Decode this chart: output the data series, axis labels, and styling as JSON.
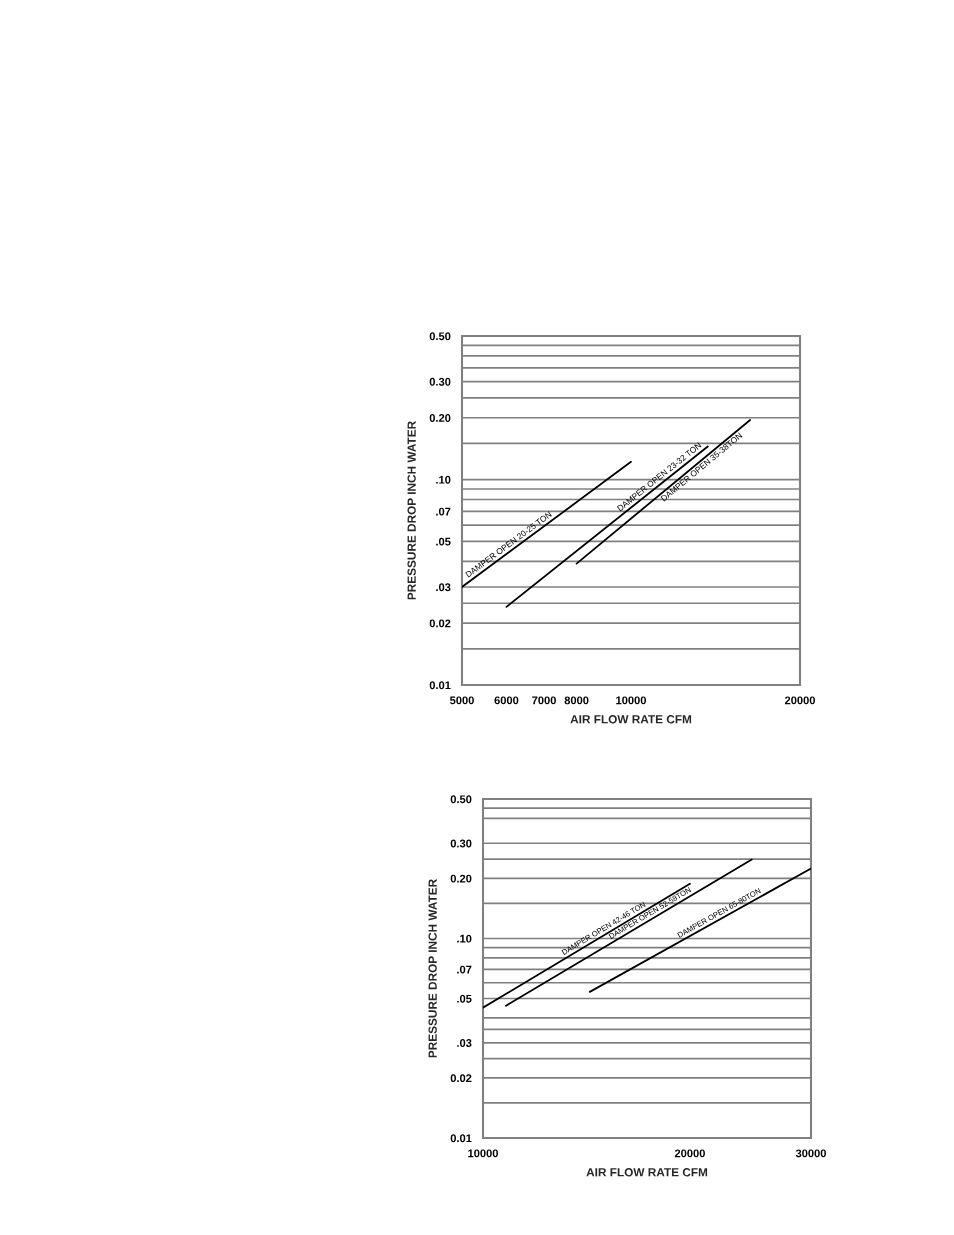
{
  "chart_data": [
    {
      "type": "line",
      "xlabel": "AIR FLOW RATE CFM",
      "ylabel": "PRESSURE DROP INCH WATER",
      "log": "xy",
      "grid": "y",
      "legend": false,
      "marker": "none",
      "line_style": "solid",
      "xlim": [
        5000,
        20000
      ],
      "xticks": [
        5000,
        6000,
        7000,
        8000,
        10000,
        20000
      ],
      "ylim": [
        0.01,
        0.5
      ],
      "yticks": [
        {
          "value": 0.01,
          "label": "0.01"
        },
        {
          "value": 0.015,
          "label": null
        },
        {
          "value": 0.02,
          "label": "0.02"
        },
        {
          "value": 0.025,
          "label": null
        },
        {
          "value": 0.03,
          "label": ".03"
        },
        {
          "value": 0.04,
          "label": null
        },
        {
          "value": 0.05,
          "label": ".05"
        },
        {
          "value": 0.06,
          "label": null
        },
        {
          "value": 0.07,
          "label": ".07"
        },
        {
          "value": 0.08,
          "label": null
        },
        {
          "value": 0.09,
          "label": null
        },
        {
          "value": 0.1,
          "label": ".10"
        },
        {
          "value": 0.15,
          "label": null
        },
        {
          "value": 0.2,
          "label": "0.20"
        },
        {
          "value": 0.25,
          "label": null
        },
        {
          "value": 0.3,
          "label": "0.30"
        },
        {
          "value": 0.35,
          "label": null
        },
        {
          "value": 0.4,
          "label": null
        },
        {
          "value": 0.45,
          "label": null
        },
        {
          "value": 0.5,
          "label": "0.50"
        }
      ],
      "series": [
        {
          "name": "DAMPER OPEN 20-25 TON",
          "color": "#000000",
          "x": [
            5000,
            10000
          ],
          "values": [
            0.03,
            0.122
          ]
        },
        {
          "name": "DAMPER OPEN 23-32 TON",
          "color": "#000000",
          "x": [
            6000,
            13700
          ],
          "values": [
            0.024,
            0.145
          ]
        },
        {
          "name": "DAMPER OPEN 35-38TON",
          "color": "#000000",
          "x": [
            8000,
            16300
          ],
          "values": [
            0.039,
            0.195
          ]
        }
      ]
    },
    {
      "type": "line",
      "xlabel": "AIR FLOW RATE CFM",
      "ylabel": "PRESSURE DROP INCH WATER",
      "log": "xy",
      "grid": "y",
      "legend": false,
      "marker": "none",
      "line_style": "solid",
      "xlim": [
        10000,
        30000
      ],
      "xticks": [
        10000,
        20000,
        30000
      ],
      "ylim": [
        0.01,
        0.5
      ],
      "yticks": [
        {
          "value": 0.01,
          "label": "0.01"
        },
        {
          "value": 0.015,
          "label": null
        },
        {
          "value": 0.02,
          "label": "0.02"
        },
        {
          "value": 0.025,
          "label": null
        },
        {
          "value": 0.03,
          "label": ".03"
        },
        {
          "value": 0.035,
          "label": null
        },
        {
          "value": 0.04,
          "label": null
        },
        {
          "value": 0.05,
          "label": ".05"
        },
        {
          "value": 0.06,
          "label": null
        },
        {
          "value": 0.07,
          "label": ".07"
        },
        {
          "value": 0.08,
          "label": null
        },
        {
          "value": 0.09,
          "label": null
        },
        {
          "value": 0.1,
          "label": ".10"
        },
        {
          "value": 0.15,
          "label": null
        },
        {
          "value": 0.2,
          "label": "0.20"
        },
        {
          "value": 0.25,
          "label": null
        },
        {
          "value": 0.3,
          "label": "0.30"
        },
        {
          "value": 0.4,
          "label": null
        },
        {
          "value": 0.45,
          "label": null
        },
        {
          "value": 0.5,
          "label": "0.50"
        }
      ],
      "series": [
        {
          "name": "DAMPER OPEN 42-46 TON",
          "color": "#000000",
          "x": [
            10000,
            20000
          ],
          "values": [
            0.045,
            0.188
          ]
        },
        {
          "name": "DAMPER OPEN 52-58TON",
          "color": "#000000",
          "x": [
            10800,
            24600
          ],
          "values": [
            0.046,
            0.249
          ]
        },
        {
          "name": "DAMPER OPEN 65-80TON",
          "color": "#000000",
          "x": [
            14300,
            30000
          ],
          "values": [
            0.054,
            0.224
          ]
        }
      ]
    }
  ]
}
